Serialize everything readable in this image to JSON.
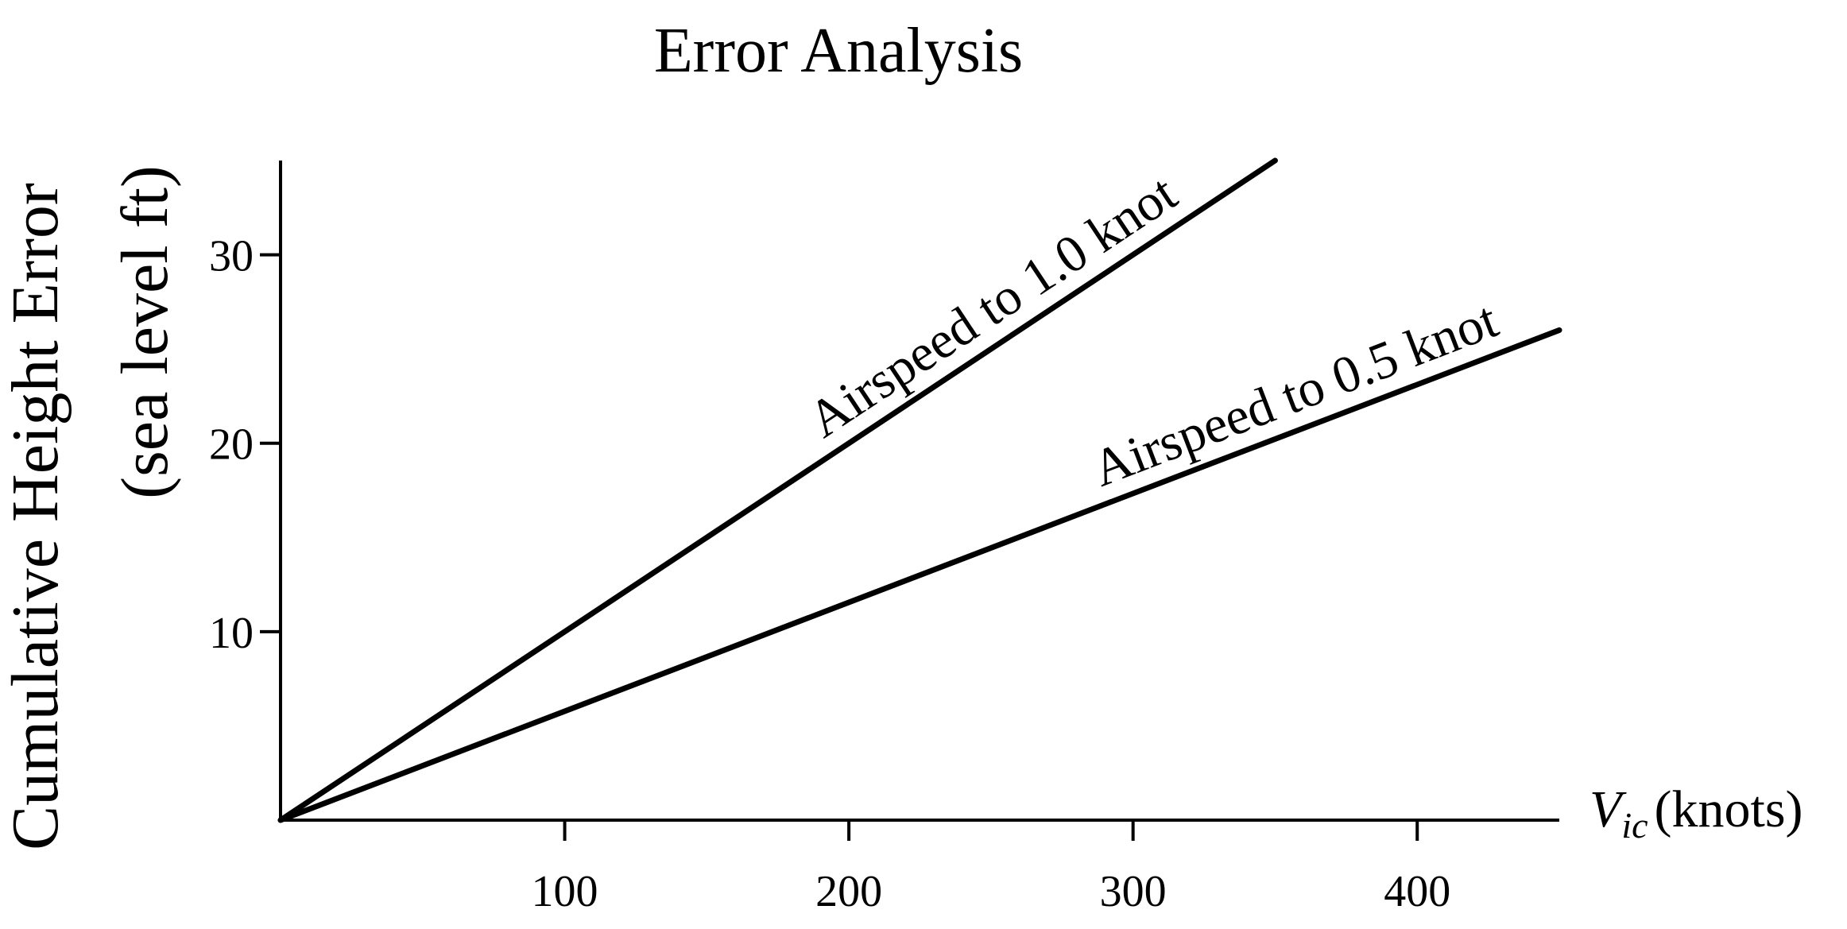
{
  "chart_data": {
    "type": "line",
    "title": "Error Analysis",
    "ylabel_line1": "Cumulative Height Error",
    "ylabel_line2": "(sea level ft)",
    "xlabel_var": "V",
    "xlabel_sub": "ic",
    "xlabel_unit": "(knots)",
    "xlim": [
      0,
      450
    ],
    "ylim": [
      0,
      35
    ],
    "xticks": [
      100,
      200,
      300,
      400
    ],
    "yticks": [
      10,
      20,
      30
    ],
    "grid": false,
    "legend": "none",
    "series": [
      {
        "name": "Airspeed to 1.0 knot",
        "x": [
          0,
          350
        ],
        "y": [
          0,
          35
        ]
      },
      {
        "name": "Airspeed to 0.5 knot",
        "x": [
          0,
          450
        ],
        "y": [
          0,
          26
        ]
      }
    ]
  }
}
